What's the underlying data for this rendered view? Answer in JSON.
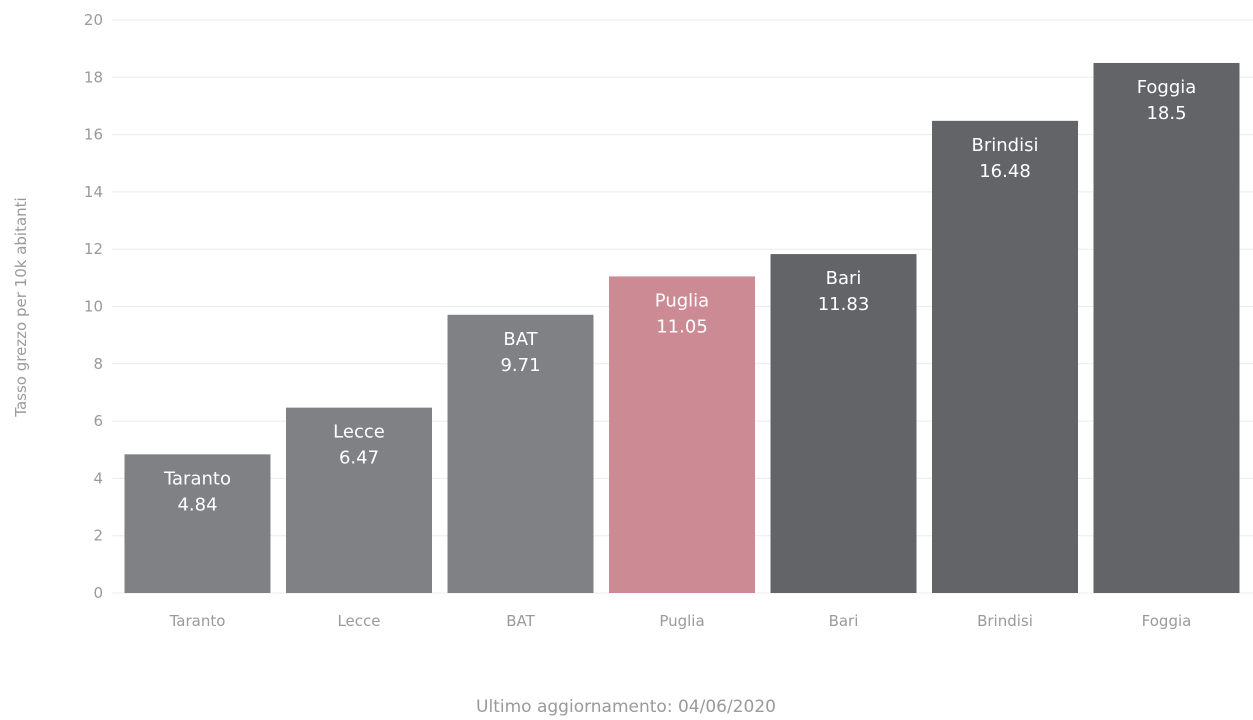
{
  "chart_data": {
    "type": "bar",
    "categories": [
      "Taranto",
      "Lecce",
      "BAT",
      "Puglia",
      "Bari",
      "Brindisi",
      "Foggia"
    ],
    "values": [
      4.84,
      6.47,
      9.71,
      11.05,
      11.83,
      16.48,
      18.5
    ],
    "value_labels": [
      "4.84",
      "6.47",
      "9.71",
      "11.05",
      "11.83",
      "16.48",
      "18.5"
    ],
    "ylabel": "Tasso grezzo per 10k abitanti",
    "xlabel": "",
    "ylim": [
      0,
      20
    ],
    "yticks": [
      0,
      2,
      4,
      6,
      8,
      10,
      12,
      14,
      16,
      18,
      20
    ],
    "grid": true,
    "legend": "none",
    "bar_colors": [
      "#7f8184",
      "#7f8184",
      "#7f8184",
      "#cc8a95",
      "#626467",
      "#626467",
      "#626467"
    ],
    "gridline_color": "#ececec"
  },
  "footer": {
    "note": "Ultimo aggiornamento: 04/06/2020"
  }
}
